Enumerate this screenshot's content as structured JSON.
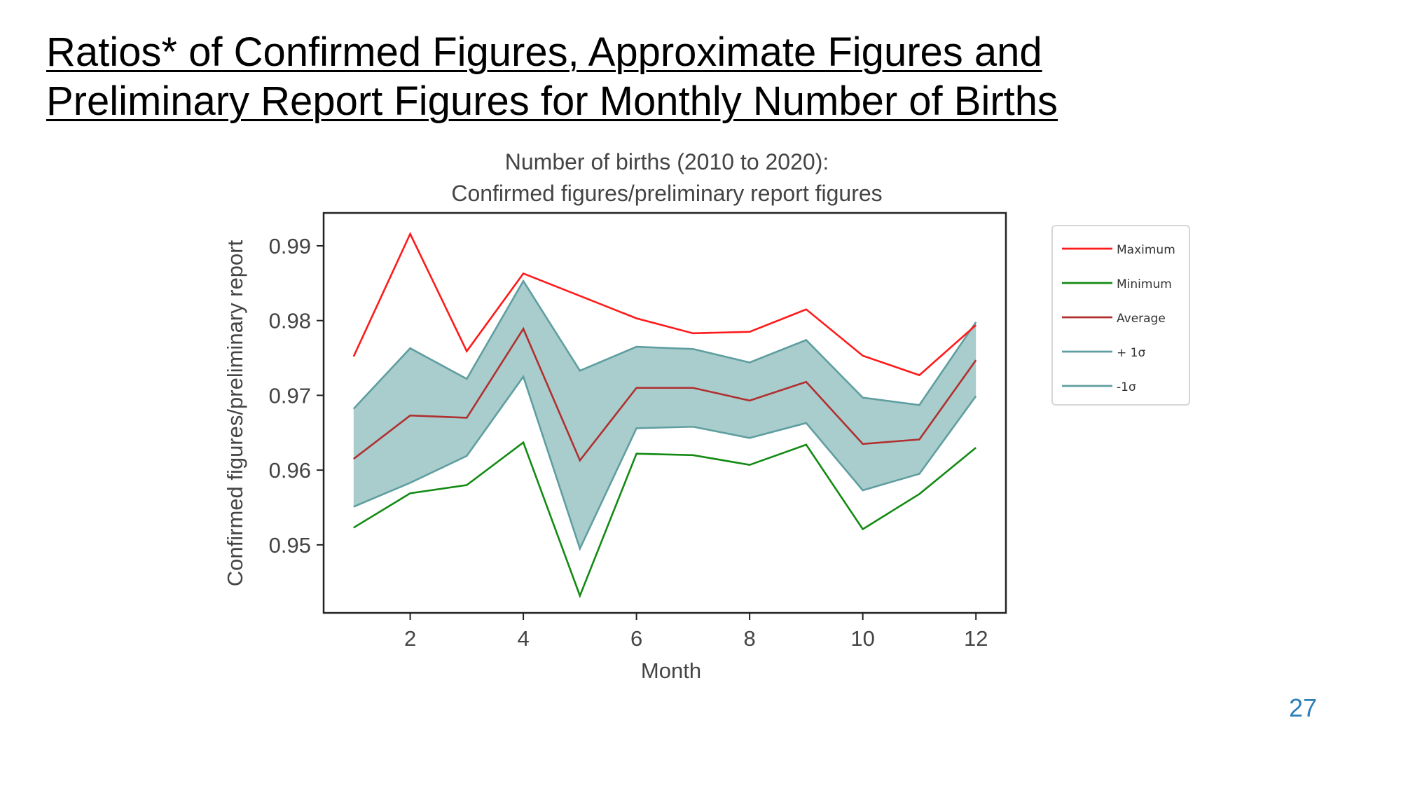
{
  "slide": {
    "title_line1": "Ratios* of Confirmed Figures, Approximate Figures and",
    "title_line2": "Preliminary Report Figures for Monthly Number of Births",
    "page_number": "27"
  },
  "chart_data": {
    "type": "line",
    "title_line1": "Number of births (2010 to 2020):",
    "title_line2": "Confirmed figures/preliminary report figures",
    "xlabel": "Month",
    "ylabel": "Confirmed figures/preliminary report",
    "x": [
      1,
      2,
      3,
      4,
      5,
      6,
      7,
      8,
      9,
      10,
      11,
      12
    ],
    "xticks": [
      2,
      4,
      6,
      8,
      10,
      12
    ],
    "yticks": [
      0.95,
      0.96,
      0.97,
      0.98,
      0.99
    ],
    "ytick_labels": [
      "0.95",
      "0.96",
      "0.97",
      "0.98",
      "0.99"
    ],
    "xlim": [
      0.47,
      12.53
    ],
    "ylim": [
      0.9409,
      0.9944
    ],
    "grid": false,
    "legend_position": "right, outside plot",
    "series": [
      {
        "name": "Maximum",
        "color": "#ff1a1a",
        "values": [
          0.9752,
          0.9916,
          0.9759,
          0.9863,
          0.9833,
          0.9803,
          0.9783,
          0.9785,
          0.9815,
          0.9753,
          0.9727,
          0.9794
        ]
      },
      {
        "name": "Minimum",
        "color": "#138a13",
        "values": [
          0.9523,
          0.9569,
          0.958,
          0.9637,
          0.9432,
          0.9622,
          0.962,
          0.9607,
          0.9634,
          0.9521,
          0.9568,
          0.963
        ]
      },
      {
        "name": "Average",
        "color": "#b03030",
        "values": [
          0.9615,
          0.9673,
          0.967,
          0.9789,
          0.9613,
          0.971,
          0.971,
          0.9693,
          0.9718,
          0.9635,
          0.9641,
          0.9747
        ]
      },
      {
        "name": "+ 1σ",
        "color": "#5f9ea0",
        "values": [
          0.9682,
          0.9763,
          0.9722,
          0.9853,
          0.9733,
          0.9765,
          0.9762,
          0.9744,
          0.9774,
          0.9697,
          0.9687,
          0.9798
        ]
      },
      {
        "name": "-1σ",
        "color": "#5f9ea0",
        "values": [
          0.9551,
          0.9583,
          0.9619,
          0.9725,
          0.9495,
          0.9656,
          0.9658,
          0.9643,
          0.9663,
          0.9573,
          0.9595,
          0.9699
        ]
      }
    ],
    "band_fill_color": "#a9cccc"
  }
}
